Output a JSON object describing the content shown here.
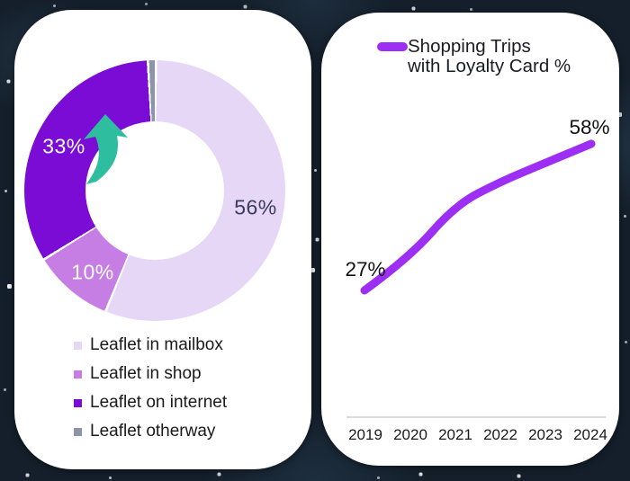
{
  "background": {
    "base_color": "#141f2b",
    "star_color": "#ffffff"
  },
  "chart_data": [
    {
      "type": "pie",
      "subtype": "donut",
      "slices": [
        {
          "label": "Leaflet in mailbox",
          "value": 56,
          "data_label": "56%",
          "color": "#e7d7f7"
        },
        {
          "label": "Leaflet in shop",
          "value": 10,
          "data_label": "10%",
          "color": "#c77ee4"
        },
        {
          "label": "Leaflet on internet",
          "value": 33,
          "data_label": "33%",
          "color": "#7a0cd6"
        },
        {
          "label": "Leaflet otherway",
          "value": 1,
          "data_label": "",
          "color": "#8b94a8"
        }
      ],
      "start_angle_deg": 0,
      "direction": "clockwise",
      "hole_ratio": 0.53,
      "slice_gap_color": "#ffffff",
      "legend_position": "bottom-left",
      "data_label_colors": {
        "on_dark": "#ffffff",
        "on_light": "#3b3b5e"
      },
      "annotation": {
        "icon": "growth-arrow",
        "color": "#2fbda0",
        "target_slice": "Leaflet on internet"
      }
    },
    {
      "type": "line",
      "title_lines": [
        "Shopping Trips",
        "with Loyalty Card %"
      ],
      "x": [
        "2019",
        "2020",
        "2021",
        "2022",
        "2023",
        "2024"
      ],
      "series": [
        {
          "name": "Shopping Trips with Loyalty Card %",
          "values": [
            27,
            34,
            45,
            50,
            54,
            58
          ],
          "color": "#9c2ff3"
        }
      ],
      "data_labels": {
        "first": "27%",
        "last": "58%"
      },
      "ylim": [
        20,
        65
      ],
      "grid": false,
      "legend_position": "top-left",
      "axis_line_color": "#d0d0d5"
    }
  ]
}
